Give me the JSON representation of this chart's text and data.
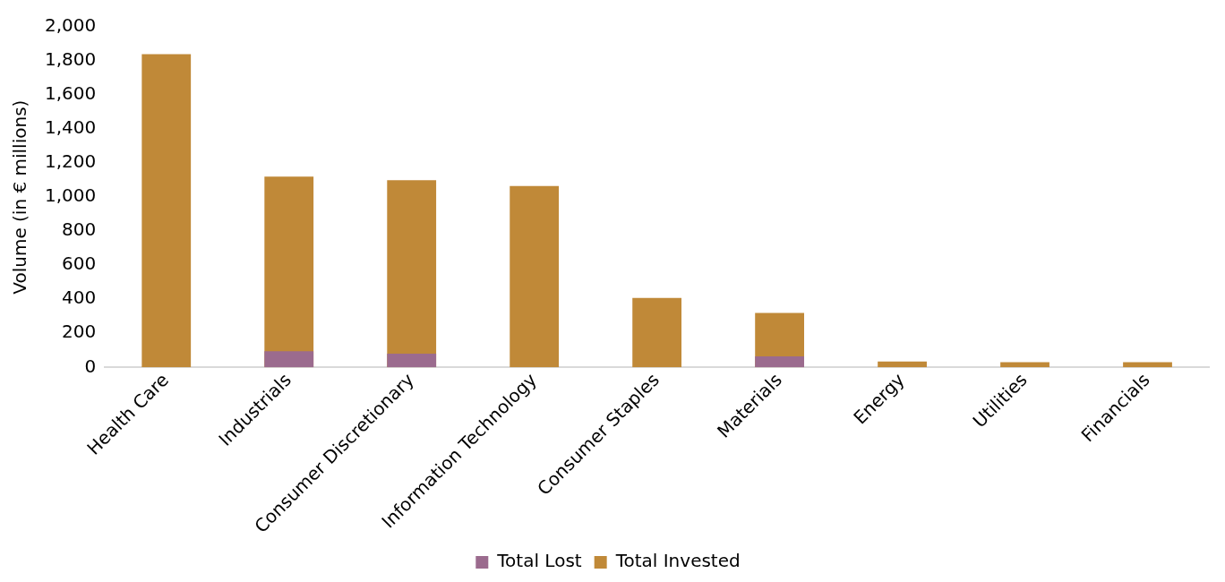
{
  "chart_data": {
    "type": "bar",
    "ylabel": "Volume (in € millions)",
    "categories": [
      "Health Care",
      "Industrials",
      "Consumer Discretionary",
      "Information Technology",
      "Consumer Staples",
      "Materials",
      "Energy",
      "Utilities",
      "Financials"
    ],
    "series": [
      {
        "name": "Total Lost",
        "color": "#9b6b8e",
        "values": [
          0,
          95,
          80,
          0,
          0,
          65,
          0,
          0,
          0
        ]
      },
      {
        "name": "Total Invested",
        "color": "#c08938",
        "values": [
          1840,
          1120,
          1100,
          1065,
          408,
          320,
          35,
          30,
          30
        ]
      }
    ],
    "ylim": [
      0,
      2000
    ],
    "yticks": [
      {
        "value": 0,
        "label": "0"
      },
      {
        "value": 200,
        "label": "200"
      },
      {
        "value": 400,
        "label": "400"
      },
      {
        "value": 600,
        "label": "600"
      },
      {
        "value": 800,
        "label": "800"
      },
      {
        "value": 1000,
        "label": "1,000"
      },
      {
        "value": 1200,
        "label": "1,200"
      },
      {
        "value": 1400,
        "label": "1,400"
      },
      {
        "value": 1600,
        "label": "1,600"
      },
      {
        "value": 1800,
        "label": "1,800"
      },
      {
        "value": 2000,
        "label": "2,000"
      }
    ],
    "legend": "bottom"
  }
}
